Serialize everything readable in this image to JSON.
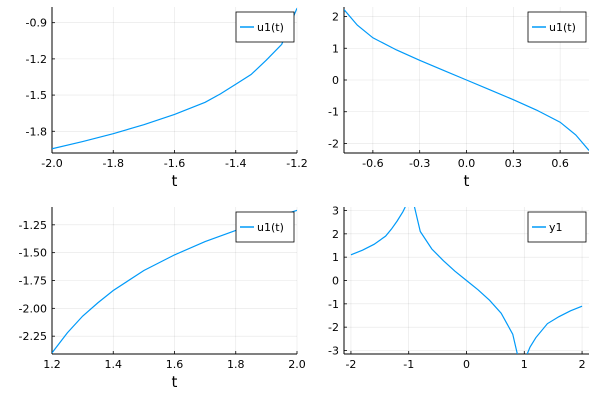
{
  "chart_data": [
    {
      "type": "line",
      "xlabel": "t",
      "ylabel": "",
      "xlim": [
        -2.0,
        -1.2
      ],
      "ylim": [
        -1.98,
        -0.77
      ],
      "xticks": [
        -2.0,
        -1.8,
        -1.6,
        -1.4,
        -1.2
      ],
      "xtick_labels": [
        "-2.0",
        "-1.8",
        "-1.6",
        "-1.4",
        "-1.2"
      ],
      "yticks": [
        -1.8,
        -1.5,
        -1.2,
        -0.9
      ],
      "ytick_labels": [
        "-1.8",
        "-1.5",
        "-1.2",
        "-0.9"
      ],
      "grid": true,
      "legend": "top-right",
      "series": [
        {
          "name": "u1(t)",
          "color": "#009af9",
          "x": [
            -2.0,
            -1.9,
            -1.8,
            -1.7,
            -1.6,
            -1.5,
            -1.45,
            -1.4,
            -1.35,
            -1.3,
            -1.25,
            -1.2
          ],
          "y": [
            -1.945,
            -1.885,
            -1.82,
            -1.745,
            -1.66,
            -1.56,
            -1.49,
            -1.41,
            -1.33,
            -1.21,
            -1.08,
            -0.78
          ]
        }
      ]
    },
    {
      "type": "line",
      "xlabel": "t",
      "ylabel": "",
      "xlim": [
        -0.785,
        0.785
      ],
      "ylim": [
        -2.3,
        2.3
      ],
      "xticks": [
        -0.6,
        -0.3,
        0.0,
        0.3,
        0.6
      ],
      "xtick_labels": [
        "-0.6",
        "-0.3",
        "0.0",
        "0.3",
        "0.6"
      ],
      "yticks": [
        -2,
        -1,
        0,
        1,
        2
      ],
      "ytick_labels": [
        "-2",
        "-1",
        "0",
        "1",
        "2"
      ],
      "grid": true,
      "legend": "top-right",
      "series": [
        {
          "name": "u1(t)",
          "color": "#009af9",
          "x": [
            -0.785,
            -0.7,
            -0.6,
            -0.45,
            -0.3,
            -0.15,
            0.0,
            0.15,
            0.3,
            0.45,
            0.6,
            0.7,
            0.785
          ],
          "y": [
            2.22,
            1.73,
            1.33,
            0.95,
            0.62,
            0.31,
            0.0,
            -0.31,
            -0.62,
            -0.95,
            -1.33,
            -1.73,
            -2.22
          ]
        }
      ]
    },
    {
      "type": "line",
      "xlabel": "t",
      "ylabel": "",
      "xlim": [
        1.2,
        2.0
      ],
      "ylim": [
        -2.41,
        -1.09
      ],
      "xticks": [
        1.2,
        1.4,
        1.6,
        1.8,
        2.0
      ],
      "xtick_labels": [
        "1.2",
        "1.4",
        "1.6",
        "1.8",
        "2.0"
      ],
      "yticks": [
        -2.25,
        -2.0,
        -1.75,
        -1.5,
        -1.25
      ],
      "ytick_labels": [
        "-2.25",
        "-2.00",
        "-1.75",
        "-1.50",
        "-1.25"
      ],
      "grid": true,
      "legend": "top-right",
      "series": [
        {
          "name": "u1(t)",
          "color": "#009af9",
          "x": [
            1.2,
            1.25,
            1.3,
            1.35,
            1.4,
            1.5,
            1.6,
            1.7,
            1.8,
            1.9,
            2.0
          ],
          "y": [
            -2.4,
            -2.22,
            -2.07,
            -1.95,
            -1.84,
            -1.66,
            -1.52,
            -1.4,
            -1.3,
            -1.21,
            -1.12
          ]
        }
      ]
    },
    {
      "type": "line",
      "xlabel": "",
      "ylabel": "",
      "xlim": [
        -2.12,
        2.12
      ],
      "ylim": [
        -3.15,
        3.15
      ],
      "xticks": [
        -2,
        -1,
        0,
        1,
        2
      ],
      "xtick_labels": [
        "-2",
        "-1",
        "0",
        "1",
        "2"
      ],
      "yticks": [
        -3,
        -2,
        -1,
        0,
        1,
        2,
        3
      ],
      "ytick_labels": [
        "-3",
        "-2",
        "-1",
        "0",
        "1",
        "2",
        "3"
      ],
      "grid": true,
      "legend": "top-right",
      "series": [
        {
          "name": "y1",
          "color": "#009af9",
          "segments": [
            {
              "x": [
                -2.0,
                -1.8,
                -1.6,
                -1.4,
                -1.3,
                -1.2,
                -1.1,
                -1.06
              ],
              "y": [
                1.1,
                1.3,
                1.55,
                1.9,
                2.2,
                2.55,
                2.95,
                3.15
              ]
            },
            {
              "x": [
                -0.9,
                -0.8,
                -0.6,
                -0.4,
                -0.2,
                0.0,
                0.2,
                0.4,
                0.6,
                0.8,
                0.88
              ],
              "y": [
                3.15,
                2.1,
                1.35,
                0.85,
                0.4,
                0.0,
                -0.4,
                -0.85,
                -1.4,
                -2.3,
                -3.15
              ]
            },
            {
              "x": [
                1.05,
                1.1,
                1.2,
                1.4,
                1.6,
                1.8,
                2.0
              ],
              "y": [
                -3.15,
                -2.85,
                -2.45,
                -1.85,
                -1.55,
                -1.3,
                -1.1
              ]
            }
          ]
        }
      ]
    }
  ]
}
